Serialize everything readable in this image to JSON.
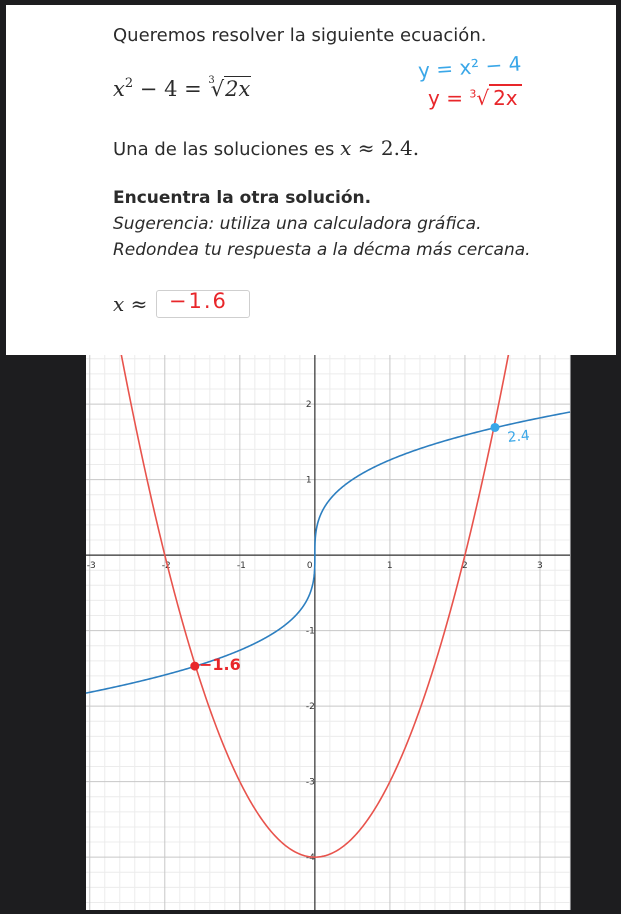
{
  "problem": {
    "intro": "Queremos resolver la siguiente ecuación.",
    "equation": {
      "lhs_base": "x",
      "lhs_exp": "2",
      "lhs_rest": " − 4 = ",
      "root_index": "3",
      "radicand": "2x"
    },
    "given_prefix": "Una de las soluciones es ",
    "given_var": "x",
    "given_approx": " ≈ 2.4.",
    "task_heading": "Encuentra la otra solución.",
    "hint": "Sugerencia: utiliza una calculadora gráfica.",
    "rounding": "Redondea tu respuesta a la décma más cercana.",
    "answer_var": "x ≈",
    "answer_value": "−1.6"
  },
  "handwriting": {
    "eq1": "y = x² − 4",
    "eq2_prefix": "y = ",
    "eq2_index": "3",
    "eq2_radicand": "2x",
    "label_right": "2.4",
    "label_left": "−1.6"
  },
  "chart_data": {
    "type": "line",
    "xlim": [
      -3.05,
      3.4
    ],
    "ylim": [
      -4.7,
      2.65
    ],
    "grid": true,
    "x_ticks": [
      "-3",
      "-2",
      "-1",
      "0",
      "1",
      "2",
      "3"
    ],
    "y_ticks": [
      "2",
      "1",
      "-1",
      "-2",
      "-3",
      "-4"
    ],
    "series": [
      {
        "function": "x^2 - 4",
        "color": "#e8534c"
      },
      {
        "function": "cbrt(2x)",
        "color": "#2d7fc0"
      }
    ],
    "points": [
      {
        "x": 2.4,
        "y": 1.69,
        "color": "#3aa7e8"
      },
      {
        "x": -1.6,
        "y": -1.47,
        "color": "#e8262a"
      }
    ]
  }
}
